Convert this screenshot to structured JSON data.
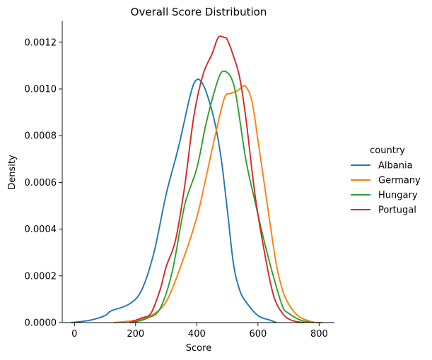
{
  "chart_data": {
    "type": "line",
    "title": "Overall Score Distribution",
    "xlabel": "Score",
    "ylabel": "Density",
    "xlim": [
      -40,
      850
    ],
    "ylim": [
      0,
      0.00129
    ],
    "xticks": [
      0,
      200,
      400,
      600,
      800
    ],
    "xtick_labels": [
      "0",
      "200",
      "400",
      "600",
      "800"
    ],
    "yticks": [
      0,
      0.0002,
      0.0004,
      0.0006,
      0.0008,
      0.001,
      0.0012
    ],
    "ytick_labels": [
      "0.0000",
      "0.0002",
      "0.0004",
      "0.0006",
      "0.0008",
      "0.0010",
      "0.0012"
    ],
    "grid": false,
    "legend": {
      "title": "country",
      "placement": "right"
    },
    "series": [
      {
        "name": "Albania",
        "color": "#1f77b4",
        "x": [
          -10,
          50,
          100,
          120,
          180,
          220,
          260,
          300,
          340,
          380,
          400,
          420,
          440,
          460,
          480,
          500,
          520,
          540,
          560,
          600,
          640,
          660
        ],
        "y": [
          0,
          1e-05,
          3e-05,
          5e-05,
          8e-05,
          0.00014,
          0.0003,
          0.00055,
          0.00075,
          0.00098,
          0.00104,
          0.00102,
          0.00095,
          0.00085,
          0.0007,
          0.00048,
          0.00025,
          0.00014,
          9e-05,
          3e-05,
          1e-05,
          0
        ]
      },
      {
        "name": "Germany",
        "color": "#ff7f0e",
        "x": [
          130,
          200,
          250,
          300,
          350,
          400,
          430,
          460,
          490,
          510,
          530,
          550,
          560,
          580,
          600,
          620,
          640,
          660,
          680,
          700,
          730,
          760,
          790,
          810
        ],
        "y": [
          0,
          1e-05,
          3e-05,
          9e-05,
          0.00025,
          0.00045,
          0.00062,
          0.0008,
          0.00096,
          0.00098,
          0.00099,
          0.00101,
          0.00101,
          0.00095,
          0.00078,
          0.0006,
          0.00042,
          0.00025,
          0.00014,
          8e-05,
          3e-05,
          1e-05,
          0,
          0
        ]
      },
      {
        "name": "Hungary",
        "color": "#2ca02c",
        "x": [
          190,
          240,
          280,
          320,
          360,
          400,
          430,
          460,
          480,
          500,
          515,
          530,
          560,
          590,
          620,
          650,
          680,
          700,
          740,
          780
        ],
        "y": [
          0,
          2e-05,
          6e-05,
          0.00022,
          0.0005,
          0.00066,
          0.00085,
          0.001,
          0.00107,
          0.00107,
          0.00104,
          0.00096,
          0.0007,
          0.00052,
          0.00035,
          0.0002,
          7e-05,
          4e-05,
          1e-05,
          0
        ]
      },
      {
        "name": "Portugal",
        "color": "#d62728",
        "x": [
          180,
          220,
          250,
          280,
          300,
          330,
          360,
          390,
          420,
          450,
          470,
          490,
          500,
          520,
          540,
          560,
          590,
          620,
          650,
          680,
          710,
          750
        ],
        "y": [
          0,
          2e-05,
          4e-05,
          0.00014,
          0.00024,
          0.00035,
          0.00058,
          0.00088,
          0.00106,
          0.00115,
          0.00122,
          0.00122,
          0.00121,
          0.00114,
          0.00105,
          0.00088,
          0.00055,
          0.00031,
          0.00012,
          4e-05,
          1e-05,
          0
        ]
      }
    ]
  }
}
